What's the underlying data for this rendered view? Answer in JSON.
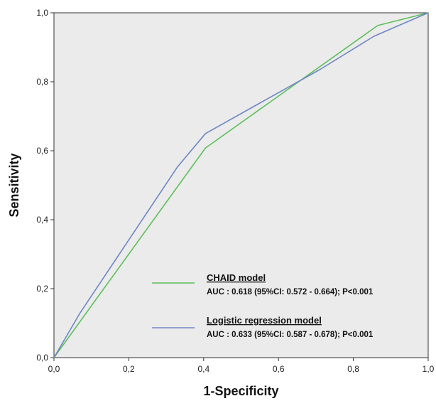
{
  "chart_data": {
    "type": "line",
    "xlabel": "1-Specificity",
    "ylabel": "Sensitivity",
    "xlim": [
      0,
      1
    ],
    "ylim": [
      0,
      1
    ],
    "x_ticks": [
      "0,0",
      "0,2",
      "0,4",
      "0,6",
      "0,8",
      "1,0"
    ],
    "y_ticks": [
      "0,0",
      "0,2",
      "0,4",
      "0,6",
      "0,8",
      "1,0"
    ],
    "grid": false,
    "legend_position": "bottom-right",
    "background": "#ebebeb",
    "series": [
      {
        "name": "CHAID model",
        "annotation": "AUC : 0.618 (95%CI: 0.572 - 0.664); P<0.001",
        "color": "#5cbf5c",
        "x": [
          0.0,
          0.405,
          0.865,
          1.0
        ],
        "y": [
          0.0,
          0.608,
          0.963,
          1.0
        ]
      },
      {
        "name": "Logistic regression model",
        "annotation": "AUC : 0.633 (95%CI: 0.587 - 0.678); P<0.001",
        "color": "#6f86c4",
        "x": [
          0.0,
          0.07,
          0.33,
          0.405,
          0.545,
          0.71,
          0.855,
          1.0
        ],
        "y": [
          0.0,
          0.13,
          0.553,
          0.65,
          0.735,
          0.835,
          0.932,
          1.0
        ]
      }
    ]
  }
}
